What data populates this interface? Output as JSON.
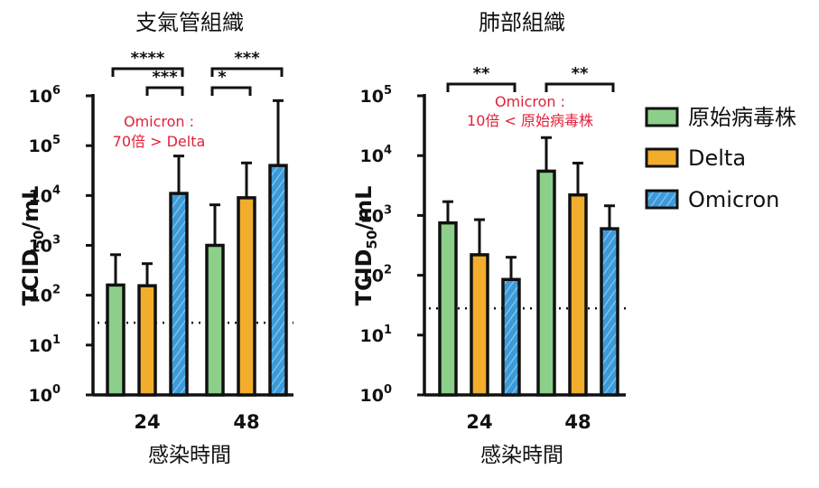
{
  "chart_data": [
    {
      "type": "bar",
      "title": "支氣管組織",
      "xlabel": "感染時間",
      "ylabel": "TCID50/mL",
      "yscale": "log",
      "ylim": [
        1,
        1000000
      ],
      "categories": [
        "24",
        "48"
      ],
      "series": [
        {
          "name": "原始病毒株",
          "color": "#8ccf8a",
          "values": [
            160,
            1000
          ],
          "error_upper": [
            650,
            6500
          ]
        },
        {
          "name": "Delta",
          "color": "#f2ad2c",
          "values": [
            155,
            9000
          ],
          "error_upper": [
            430,
            45000
          ]
        },
        {
          "name": "Omicron",
          "color": "#3d9ad8",
          "values": [
            11000,
            40000
          ],
          "error_upper": [
            62000,
            800000
          ]
        }
      ],
      "detection_limit": 28,
      "significance": [
        {
          "label": "****",
          "category": "24",
          "between": [
            "原始病毒株",
            "Omicron"
          ]
        },
        {
          "label": "***",
          "category": "24",
          "between": [
            "Delta",
            "Omicron"
          ]
        },
        {
          "label": "***",
          "category": "48",
          "between": [
            "原始病毒株",
            "Omicron"
          ]
        },
        {
          "label": "*",
          "category": "48",
          "between": [
            "原始病毒株",
            "Delta"
          ]
        }
      ],
      "annotation": [
        "Omicron :",
        "70倍 > Delta"
      ],
      "yticks": [
        {
          "base": "10",
          "exp": "0"
        },
        {
          "base": "10",
          "exp": "1"
        },
        {
          "base": "10",
          "exp": "2"
        },
        {
          "base": "10",
          "exp": "3"
        },
        {
          "base": "10",
          "exp": "4"
        },
        {
          "base": "10",
          "exp": "5"
        },
        {
          "base": "10",
          "exp": "6"
        }
      ]
    },
    {
      "type": "bar",
      "title": "肺部組織",
      "xlabel": "感染時間",
      "ylabel": "TCID50/mL",
      "yscale": "log",
      "ylim": [
        1,
        100000
      ],
      "categories": [
        "24",
        "48"
      ],
      "series": [
        {
          "name": "原始病毒株",
          "color": "#8ccf8a",
          "values": [
            750,
            5500
          ],
          "error_upper": [
            1700,
            20000
          ]
        },
        {
          "name": "Delta",
          "color": "#f2ad2c",
          "values": [
            220,
            2200
          ],
          "error_upper": [
            850,
            7500
          ]
        },
        {
          "name": "Omicron",
          "color": "#3d9ad8",
          "values": [
            85,
            600
          ],
          "error_upper": [
            200,
            1450
          ]
        }
      ],
      "detection_limit": 28,
      "significance": [
        {
          "label": "**",
          "category": "24",
          "between": [
            "原始病毒株",
            "Omicron"
          ]
        },
        {
          "label": "**",
          "category": "48",
          "between": [
            "原始病毒株",
            "Omicron"
          ]
        }
      ],
      "annotation": [
        "Omicron :",
        "10倍 < 原始病毒株"
      ],
      "yticks": [
        {
          "base": "10",
          "exp": "0"
        },
        {
          "base": "10",
          "exp": "1"
        },
        {
          "base": "10",
          "exp": "2"
        },
        {
          "base": "10",
          "exp": "3"
        },
        {
          "base": "10",
          "exp": "4"
        },
        {
          "base": "10",
          "exp": "5"
        }
      ]
    }
  ],
  "legend": {
    "items": [
      {
        "label": "原始病毒株",
        "color": "#8ccf8a"
      },
      {
        "label": "Delta",
        "color": "#f2ad2c"
      },
      {
        "label": "Omicron",
        "color": "#3d9ad8"
      }
    ]
  },
  "ylabel_parts": {
    "main": "TCID",
    "sub": "50",
    "unit": "/mL"
  }
}
